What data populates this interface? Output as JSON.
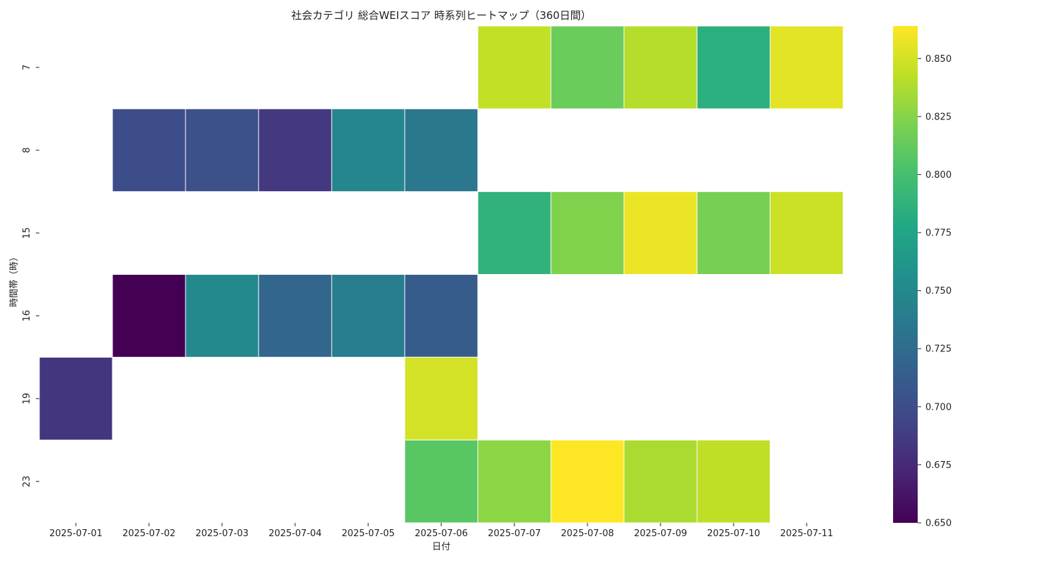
{
  "chart_data": {
    "type": "heatmap",
    "title": "社会カテゴリ 総合WEIスコア 時系列ヒートマップ（360日間）",
    "xlabel": "日付",
    "ylabel": "時間帯（時）",
    "x": [
      "2025-07-01",
      "2025-07-02",
      "2025-07-03",
      "2025-07-04",
      "2025-07-05",
      "2025-07-06",
      "2025-07-07",
      "2025-07-08",
      "2025-07-09",
      "2025-07-10",
      "2025-07-11"
    ],
    "y": [
      "7",
      "8",
      "15",
      "16",
      "19",
      "23"
    ],
    "values": [
      [
        null,
        null,
        null,
        null,
        null,
        null,
        0.844,
        0.815,
        0.84,
        0.785,
        0.855
      ],
      [
        null,
        0.7,
        0.702,
        0.685,
        0.748,
        0.735,
        null,
        null,
        null,
        null,
        null
      ],
      [
        null,
        null,
        null,
        null,
        null,
        null,
        0.788,
        0.823,
        0.858,
        0.82,
        0.847
      ],
      [
        null,
        0.65,
        0.75,
        0.72,
        0.74,
        0.712,
        null,
        null,
        null,
        null,
        null
      ],
      [
        0.683,
        null,
        null,
        null,
        null,
        0.85,
        null,
        null,
        null,
        null,
        null
      ],
      [
        null,
        null,
        null,
        null,
        null,
        0.808,
        0.827,
        0.864,
        0.837,
        0.843,
        null
      ]
    ],
    "colormap": "viridis",
    "vmin": 0.65,
    "vmax": 0.864,
    "colorbar_ticks": [
      "0.650",
      "0.675",
      "0.700",
      "0.725",
      "0.750",
      "0.775",
      "0.800",
      "0.825",
      "0.850"
    ]
  }
}
